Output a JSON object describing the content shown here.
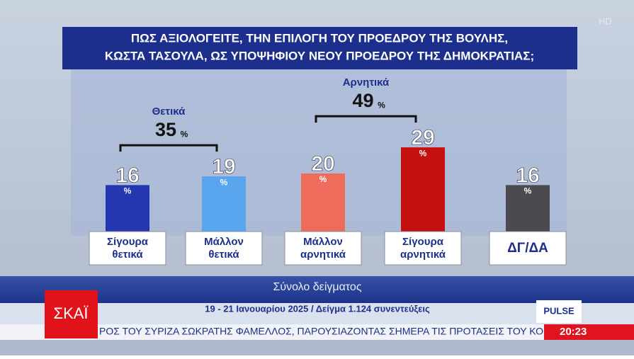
{
  "chart_data": {
    "type": "bar",
    "title": [
      "ΠΩΣ ΑΞΙΟΛΟΓΕΙΤΕ, ΤΗΝ ΕΠΙΛΟΓΗ ΤΟΥ ΠΡΟΕΔΡΟΥ ΤΗΣ ΒΟΥΛΗΣ,",
      "ΚΩΣΤΑ ΤΑΣΟΥΛΑ, ΩΣ ΥΠΟΨΗΦΙΟΥ ΝΕΟΥ ΠΡΟΕΔΡΟΥ ΤΗΣ ΔΗΜΟΚΡΑΤΙΑΣ;"
    ],
    "categories": [
      [
        "Σίγουρα",
        "θετικά"
      ],
      [
        "Μάλλον",
        "θετικά"
      ],
      [
        "Μάλλον",
        "αρνητικά"
      ],
      [
        "Σίγουρα",
        "αρνητικά"
      ],
      [
        "ΔΓ/ΔΑ"
      ]
    ],
    "values": [
      16,
      19,
      20,
      29,
      16
    ],
    "unit": "%",
    "colors": [
      "#2436b0",
      "#5aa6ee",
      "#ef6b5b",
      "#c4100f",
      "#4b4b4f"
    ],
    "groups": [
      {
        "name": "Θετικά",
        "value": 35,
        "from": 0,
        "to": 1
      },
      {
        "name": "Αρνητικά",
        "value": 49,
        "from": 2,
        "to": 3
      }
    ],
    "footer": "Σύνολο δείγματος",
    "source": "19 - 21 Ιανουαρίου 2025 / Δείγμα 1.124 συνεντεύξεις"
  },
  "broadcast": {
    "channel": "ΣΚΑΪ",
    "pollster": "PULSE",
    "hd": "HD",
    "ticker": "ΡΟΣ ΤΟΥ ΣΥΡΙΖΑ ΣΩΚΡΑΤΗΣ ΦΑΜΕΛΛΟΣ, ΠΑΡΟΥΣΙΑΖΟΝΤΑΣ ΣΗΜΕΡΑ ΤΙΣ ΠΡΟΤΑΣΕΙΣ ΤΟΥ ΚΟΜ",
    "time": "20:23"
  }
}
